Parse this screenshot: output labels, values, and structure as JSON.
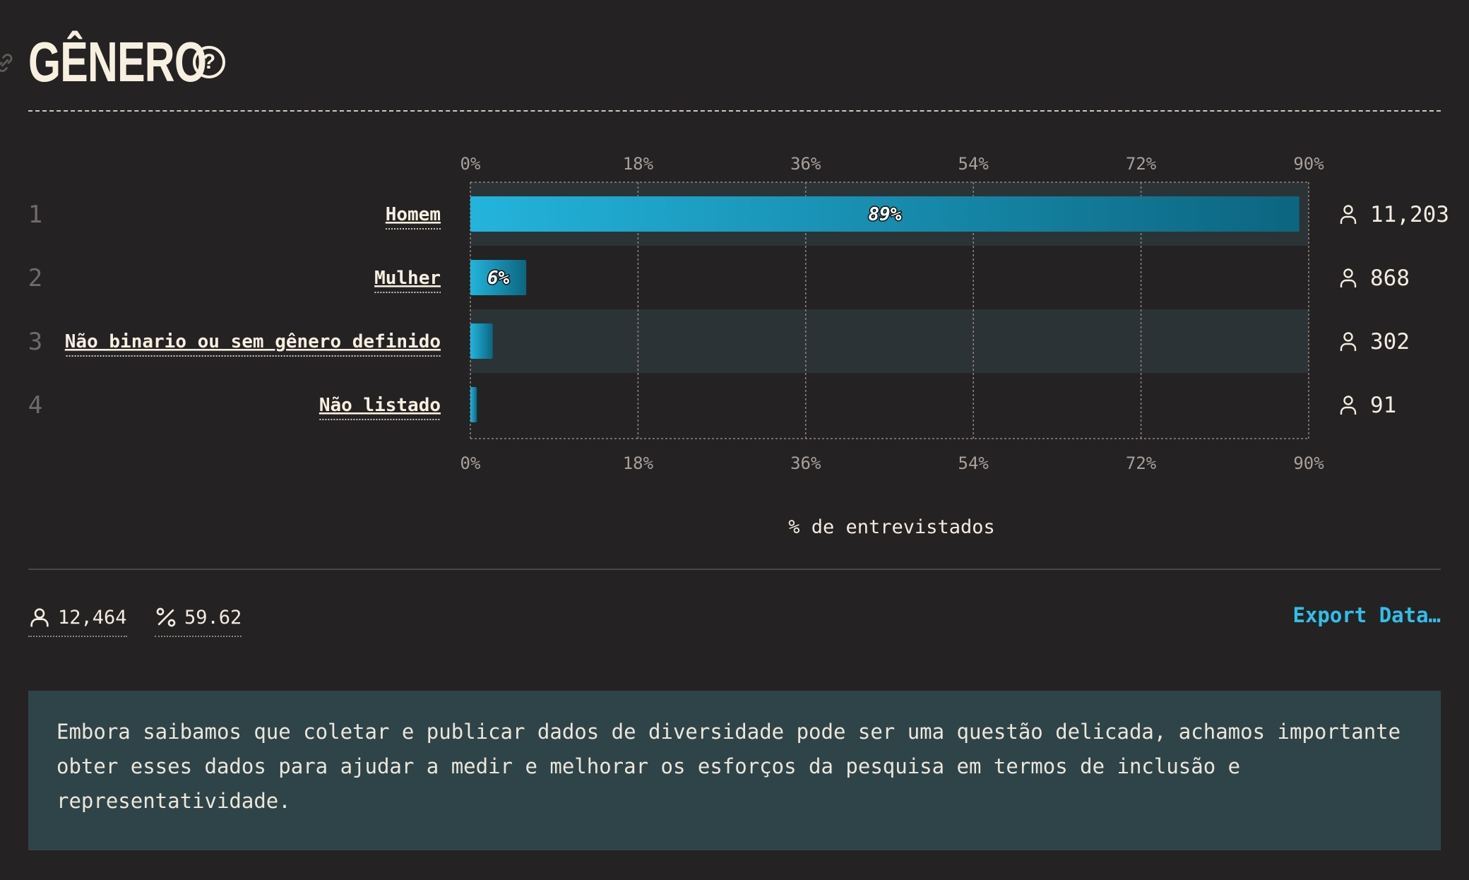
{
  "header": {
    "title": "GÊNERO",
    "help_label": "?"
  },
  "colors": {
    "background": "#252223",
    "bar_start": "#23b4dc",
    "bar_end": "#0c6580",
    "row_highlight": "#2c3336",
    "accent": "#2fc0ea",
    "note_background": "#2f4449"
  },
  "chart_data": {
    "type": "bar",
    "orientation": "horizontal",
    "categories": [
      "Homem",
      "Mulher",
      "Não binario ou sem gênero definido",
      "Não listado"
    ],
    "ranks": [
      "1",
      "2",
      "3",
      "4"
    ],
    "values": [
      89,
      6,
      2.4,
      0.7
    ],
    "data_labels": [
      "89%",
      "6%",
      "",
      ""
    ],
    "counts": [
      "11,203",
      "868",
      "302",
      "91"
    ],
    "x_ticks": [
      "0%",
      "18%",
      "36%",
      "54%",
      "72%",
      "90%"
    ],
    "xlim": [
      0,
      90
    ],
    "xlabel": "% de entrevistados",
    "grid": true,
    "axis_position": "top and bottom"
  },
  "summary": {
    "respondents": "12,464",
    "percentage": "59.62",
    "export_label": "Export Data…"
  },
  "note": {
    "text": "Embora saibamos que coletar e publicar dados de diversidade pode ser uma questão delicada, achamos importante obter esses dados para ajudar a medir e melhorar os esforços da pesquisa em termos de inclusão e representatividade."
  },
  "icons": {
    "link": "link-icon",
    "help": "help-circle-icon",
    "person": "person-icon",
    "percent": "percent-icon"
  }
}
